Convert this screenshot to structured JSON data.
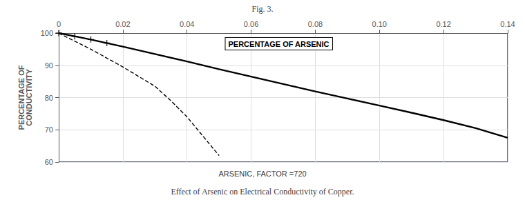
{
  "chart_data": {
    "type": "line",
    "title": "Fig. 3.",
    "caption": "Effect of Arsenic on Electrical Conductivity of Copper.",
    "xlabel": "PERCENTAGE OF ARSENIC",
    "ylabel": "PERCENTAGE OF\nCONDUCTIVITY",
    "annotations": [
      "ARSENIC, FACTOR =720"
    ],
    "xlim": [
      0,
      0.14
    ],
    "ylim": [
      60,
      100
    ],
    "xticks": [
      0,
      0.02,
      0.04,
      0.06,
      0.08,
      {
        "value": 0.1,
        "label": "0.10"
      },
      0.12,
      0.14
    ],
    "yticks": [
      60,
      70,
      80,
      90,
      100
    ],
    "grid": true,
    "series": [
      {
        "type": "line",
        "line_style": "solid",
        "color": "#000000",
        "x": [
          0,
          0.005,
          0.01,
          0.02,
          0.03,
          0.04,
          0.05,
          0.06,
          0.07,
          0.08,
          0.09,
          0.1,
          0.11,
          0.12,
          0.13,
          0.14
        ],
        "values": [
          100,
          99.0,
          98.0,
          95.8,
          93.5,
          91.2,
          88.8,
          86.5,
          84.2,
          81.9,
          79.7,
          77.5,
          75.3,
          73.0,
          70.5,
          67.5
        ]
      },
      {
        "type": "line",
        "line_style": "dashed",
        "color": "#000000",
        "x": [
          0,
          0.01,
          0.02,
          0.03,
          0.035,
          0.04,
          0.045,
          0.05
        ],
        "values": [
          100,
          95.0,
          89.5,
          83.5,
          79.0,
          74.0,
          68.0,
          62.0
        ]
      },
      {
        "type": "scatter",
        "marker": "plus",
        "color": "#000000",
        "x": [
          0,
          0.005,
          0.01,
          0.015
        ],
        "values": [
          100,
          99.0,
          98.0,
          96.9
        ]
      }
    ]
  }
}
